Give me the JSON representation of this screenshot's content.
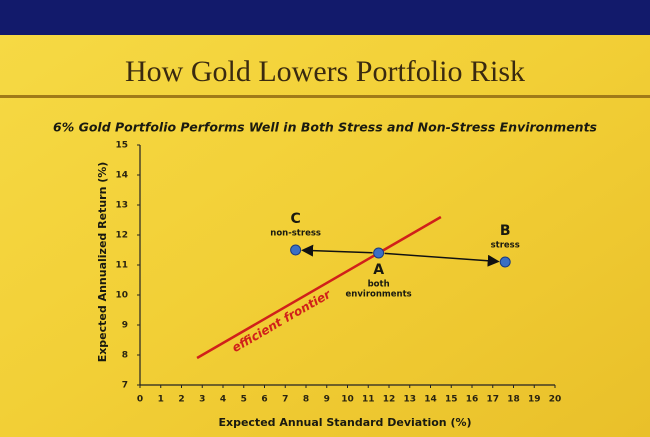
{
  "chart_data": {
    "type": "scatter",
    "title": "How Gold Lowers Portfolio Risk",
    "subtitle": "6% Gold Portfolio Performs Well in Both Stress and Non-Stress Environments",
    "x_label": "Expected Annual Standard Deviation (%)",
    "y_label": "Expected Annualized Return (%)",
    "xlim": [
      0,
      20
    ],
    "ylim": [
      7,
      15
    ],
    "xticks": [
      0,
      1,
      2,
      3,
      4,
      5,
      6,
      7,
      8,
      9,
      10,
      11,
      12,
      13,
      14,
      15,
      16,
      17,
      18,
      19,
      20
    ],
    "yticks": [
      7,
      8,
      9,
      10,
      11,
      12,
      13,
      14,
      15
    ],
    "point_color": "#3a6fc4",
    "points": [
      {
        "name": "C",
        "note": [
          "non-stress"
        ],
        "x": 7.5,
        "y": 11.5
      },
      {
        "name": "A",
        "note": [
          "both",
          "environments"
        ],
        "x": 11.5,
        "y": 11.4
      },
      {
        "name": "B",
        "note": [
          "stress"
        ],
        "x": 17.6,
        "y": 11.1
      }
    ],
    "frontier": {
      "label": "efficient frontier",
      "color": "#d0201a",
      "x": [
        2.75,
        14.5
      ],
      "y": [
        7.9,
        12.6
      ]
    }
  }
}
